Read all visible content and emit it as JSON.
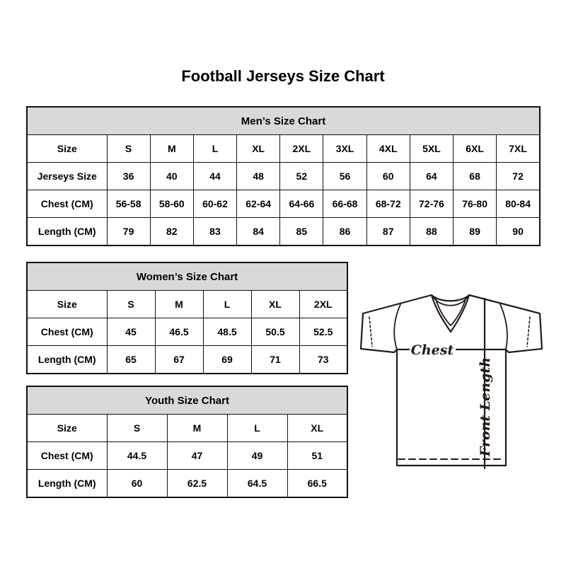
{
  "page": {
    "title": "Football Jerseys Size Chart"
  },
  "tables": [
    {
      "id": "men",
      "title": "Men’s Size Chart",
      "rows": [
        [
          "Size",
          "S",
          "M",
          "L",
          "XL",
          "2XL",
          "3XL",
          "4XL",
          "5XL",
          "6XL",
          "7XL"
        ],
        [
          "Jerseys Size",
          "36",
          "40",
          "44",
          "48",
          "52",
          "56",
          "60",
          "64",
          "68",
          "72"
        ],
        [
          "Chest (CM)",
          "56-58",
          "58-60",
          "60-62",
          "62-64",
          "64-66",
          "66-68",
          "68-72",
          "72-76",
          "76-80",
          "80-84"
        ],
        [
          "Length (CM)",
          "79",
          "82",
          "83",
          "84",
          "85",
          "86",
          "87",
          "88",
          "89",
          "90"
        ]
      ]
    },
    {
      "id": "women",
      "title": "Women’s Size Chart",
      "rows": [
        [
          "Size",
          "S",
          "M",
          "L",
          "XL",
          "2XL"
        ],
        [
          "Chest (CM)",
          "45",
          "46.5",
          "48.5",
          "50.5",
          "52.5"
        ],
        [
          "Length (CM)",
          "65",
          "67",
          "69",
          "71",
          "73"
        ]
      ]
    },
    {
      "id": "youth",
      "title": "Youth Size Chart",
      "rows": [
        [
          "Size",
          "S",
          "M",
          "L",
          "XL"
        ],
        [
          "Chest (CM)",
          "44.5",
          "47",
          "49",
          "51"
        ],
        [
          "Length (CM)",
          "60",
          "62.5",
          "64.5",
          "66.5"
        ]
      ]
    }
  ],
  "diagram": {
    "chest_label": "Chest",
    "front_length_label": "Front Length"
  },
  "colors": {
    "header_bg": "#d9d9d9",
    "table_border": "#111111",
    "drawing_stroke": "#231a15",
    "text": "#000000"
  }
}
